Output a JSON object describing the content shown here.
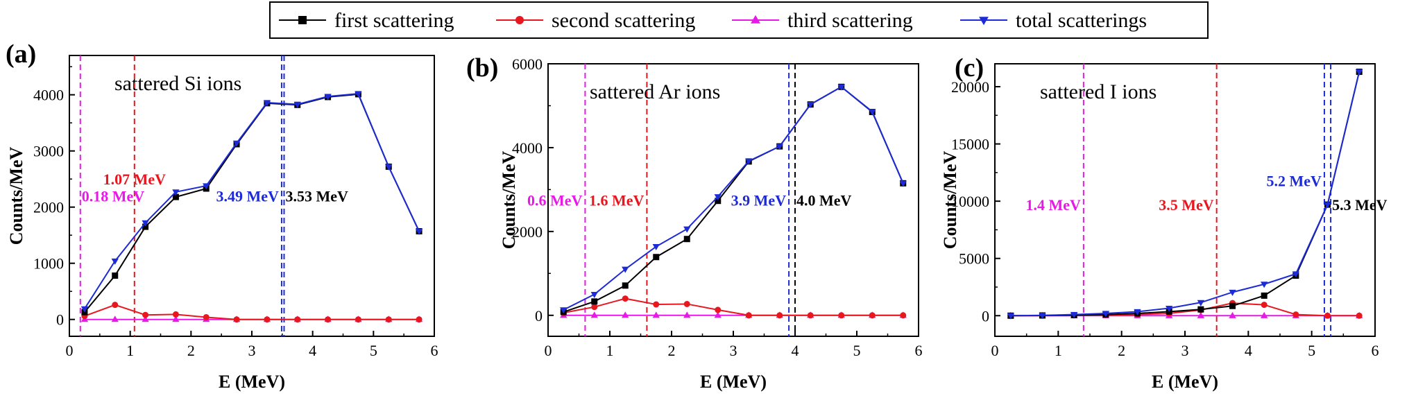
{
  "legend": {
    "placement": "top-center",
    "entries": [
      {
        "label": "first scattering",
        "color": "#000000",
        "marker": "square"
      },
      {
        "label": "second scattering",
        "color": "#e8171f",
        "marker": "circle"
      },
      {
        "label": "third scattering",
        "color": "#e619e6",
        "marker": "triangle-up"
      },
      {
        "label": "total scatterings",
        "color": "#1d2bd6",
        "marker": "triangle-down"
      }
    ]
  },
  "chart_data": [
    {
      "type": "line",
      "panel_label": "(a)",
      "annotation_title": "sattered Si ions",
      "xlabel": "E (MeV)",
      "ylabel": "Counts/MeV",
      "xlim": [
        0,
        6
      ],
      "ylim": [
        -300,
        4700
      ],
      "xticks": [
        0,
        1,
        2,
        3,
        4,
        5,
        6
      ],
      "yticks": [
        0,
        1000,
        2000,
        3000,
        4000
      ],
      "x": [
        0.25,
        0.75,
        1.25,
        1.75,
        2.25,
        2.75,
        3.25,
        3.75,
        4.25,
        4.75,
        5.25,
        5.75
      ],
      "series": [
        {
          "name": "first scattering",
          "values": [
            130,
            780,
            1650,
            2180,
            2330,
            3120,
            3850,
            3820,
            3960,
            4010,
            2720,
            1570
          ]
        },
        {
          "name": "second scattering",
          "values": [
            60,
            260,
            80,
            90,
            40,
            0,
            0,
            0,
            0,
            0,
            0,
            0
          ]
        },
        {
          "name": "third scattering",
          "values": [
            0,
            0,
            0,
            0,
            0,
            0,
            0,
            0,
            0,
            0,
            0,
            0
          ]
        },
        {
          "name": "total scatterings",
          "values": [
            190,
            1040,
            1720,
            2270,
            2380,
            3140,
            3860,
            3830,
            3970,
            4020,
            2720,
            1570
          ]
        }
      ],
      "vlines": [
        {
          "x": 0.18,
          "color": "#e619e6",
          "label": "0.18 MeV",
          "label_y": 2200
        },
        {
          "x": 1.07,
          "color": "#e8171f",
          "label": "1.07 MeV",
          "label_y": 2500
        },
        {
          "x": 3.49,
          "color": "#1d2bd6",
          "label": "3.49 MeV",
          "label_y": 2200
        },
        {
          "x": 3.53,
          "color": "#1d2bd6",
          "label": "3.53 MeV",
          "label_y": 2200,
          "label_color": "#000000"
        }
      ]
    },
    {
      "type": "line",
      "panel_label": "(b)",
      "annotation_title": "sattered Ar ions",
      "xlabel": "E (MeV)",
      "ylabel": "Counts/MeV",
      "xlim": [
        0,
        6
      ],
      "ylim": [
        -500,
        6000
      ],
      "xticks": [
        0,
        1,
        2,
        3,
        4,
        5,
        6
      ],
      "yticks": [
        0,
        2000,
        4000,
        6000
      ],
      "x": [
        0.25,
        0.75,
        1.25,
        1.75,
        2.25,
        2.75,
        3.25,
        3.75,
        4.25,
        4.75,
        5.25,
        5.75
      ],
      "series": [
        {
          "name": "first scattering",
          "values": [
            80,
            330,
            710,
            1390,
            1820,
            2730,
            3670,
            4030,
            5030,
            5450,
            4850,
            3150
          ]
        },
        {
          "name": "second scattering",
          "values": [
            60,
            200,
            400,
            260,
            270,
            130,
            0,
            0,
            0,
            0,
            0,
            0
          ]
        },
        {
          "name": "third scattering",
          "values": [
            0,
            0,
            0,
            0,
            0,
            0,
            0,
            0,
            0,
            0,
            0,
            0
          ]
        },
        {
          "name": "total scatterings",
          "values": [
            130,
            500,
            1100,
            1640,
            2060,
            2830,
            3680,
            4030,
            5030,
            5450,
            4860,
            3150
          ]
        }
      ],
      "vlines": [
        {
          "x": 0.6,
          "color": "#e619e6",
          "label": "0.6 MeV",
          "label_y": 2750
        },
        {
          "x": 1.6,
          "color": "#e8171f",
          "label": "1.6 MeV",
          "label_y": 2750
        },
        {
          "x": 3.9,
          "color": "#1d2bd6",
          "label": "3.9 MeV",
          "label_y": 2750
        },
        {
          "x": 4.0,
          "color": "#000000",
          "label": "4.0 MeV",
          "label_y": 2750
        }
      ]
    },
    {
      "type": "line",
      "panel_label": "(c)",
      "annotation_title": "sattered I ions",
      "xlabel": "E (MeV)",
      "ylabel": "Counts/MeV",
      "xlim": [
        0,
        6
      ],
      "ylim": [
        -1800,
        22000
      ],
      "xticks": [
        0,
        1,
        2,
        3,
        4,
        5,
        6
      ],
      "yticks": [
        0,
        5000,
        10000,
        15000,
        20000
      ],
      "x": [
        0.25,
        0.75,
        1.25,
        1.75,
        2.25,
        2.75,
        3.25,
        3.75,
        4.25,
        4.75,
        5.25,
        5.75
      ],
      "series": [
        {
          "name": "first scattering",
          "values": [
            0,
            20,
            50,
            100,
            200,
            350,
            550,
            850,
            1750,
            3500,
            9700,
            21300
          ]
        },
        {
          "name": "second scattering",
          "values": [
            0,
            0,
            30,
            60,
            100,
            200,
            500,
            1100,
            950,
            100,
            0,
            0
          ]
        },
        {
          "name": "third scattering",
          "values": [
            0,
            0,
            0,
            0,
            0,
            0,
            0,
            0,
            0,
            0,
            0,
            0
          ]
        },
        {
          "name": "total scatterings",
          "values": [
            0,
            30,
            100,
            200,
            350,
            650,
            1150,
            2050,
            2750,
            3650,
            9700,
            21300
          ]
        }
      ],
      "vlines": [
        {
          "x": 1.4,
          "color": "#e619e6",
          "label": "1.4 MeV",
          "label_y": 9700
        },
        {
          "x": 3.5,
          "color": "#e8171f",
          "label": "3.5 MeV",
          "label_y": 9700
        },
        {
          "x": 5.2,
          "color": "#1d2bd6",
          "label": "5.2 MeV",
          "label_y": 11800
        },
        {
          "x": 5.3,
          "color": "#1d2bd6",
          "label": "5.3 MeV",
          "label_y": 9700,
          "label_color": "#000000"
        }
      ]
    }
  ]
}
